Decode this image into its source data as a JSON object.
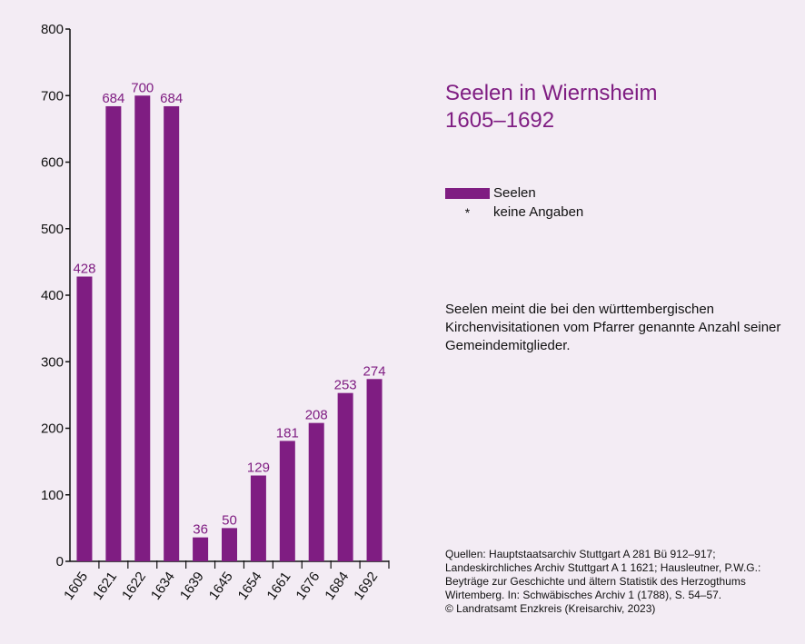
{
  "title": {
    "line1": "Seelen in Wiernsheim",
    "line2": "1605–1692"
  },
  "legend": {
    "series_label": "Seelen",
    "missing_symbol": "*",
    "missing_label": "keine Angaben"
  },
  "note": "Seelen meint die bei den württembergischen Kirchenvisitationen vom Pfarrer genannte Anzahl seiner Gemeindemitglieder.",
  "sources": [
    "Quellen: Hauptstaatsarchiv Stuttgart A 281 Bü 912–917;",
    "Landeskirchliches Archiv Stuttgart A 1 1621; Hausleutner, P.W.G.:",
    "Beyträge zur Geschichte und ältern Statistik des Herzogthums",
    "Wirtemberg. In: Schwäbisches Archiv 1 (1788), S. 54–57.",
    "© Landratsamt Enzkreis (Kreisarchiv, 2023)"
  ],
  "colors": {
    "bar": "#7f1d82",
    "label": "#7f1d82",
    "axis": "#111111",
    "background": "#f3ecf4"
  },
  "chart_data": {
    "type": "bar",
    "categories": [
      "1605",
      "1621",
      "1622",
      "1634",
      "1639",
      "1645",
      "1654",
      "1661",
      "1676",
      "1684",
      "1692"
    ],
    "series": [
      {
        "name": "Seelen",
        "values": [
          428,
          684,
          700,
          684,
          36,
          50,
          129,
          181,
          208,
          253,
          274
        ]
      }
    ],
    "yticks": [
      0,
      100,
      200,
      300,
      400,
      500,
      600,
      700,
      800
    ],
    "ylim": [
      0,
      800
    ],
    "grid": false,
    "legend_position": "right",
    "data_labels": true,
    "xtick_rotation": "diagonal"
  }
}
